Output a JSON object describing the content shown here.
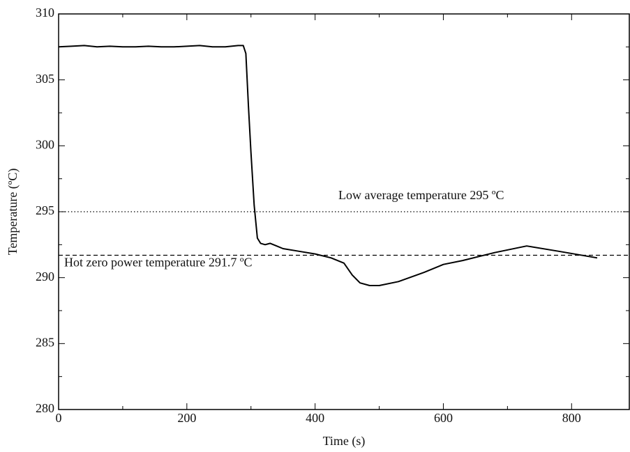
{
  "chart_data": {
    "type": "line",
    "xlabel": "Time (s)",
    "ylabel": "Temperature (ºC)",
    "xlim": [
      0,
      890
    ],
    "ylim": [
      280,
      310
    ],
    "xticks": [
      0,
      200,
      400,
      600,
      800
    ],
    "yticks": [
      280,
      285,
      290,
      295,
      300,
      305,
      310
    ],
    "xminor_ticks": [
      100,
      300,
      500,
      700
    ],
    "yminor_ticks": [
      282.5,
      287.5,
      292.5,
      297.5,
      302.5,
      307.5
    ],
    "series": [
      {
        "color": "#000000",
        "x": [
          0,
          20,
          40,
          60,
          80,
          100,
          120,
          140,
          160,
          180,
          200,
          220,
          240,
          260,
          280,
          288,
          292,
          296,
          300,
          305,
          310,
          315,
          322,
          330,
          340,
          350,
          375,
          400,
          425,
          445,
          458,
          470,
          485,
          500,
          530,
          570,
          600,
          630,
          680,
          730,
          780,
          840
        ],
        "values": [
          307.5,
          307.55,
          307.6,
          307.5,
          307.55,
          307.5,
          307.5,
          307.55,
          307.5,
          307.5,
          307.55,
          307.6,
          307.5,
          307.5,
          307.6,
          307.6,
          307.0,
          303,
          299.5,
          295.5,
          293,
          292.6,
          292.5,
          292.6,
          292.4,
          292.2,
          292.0,
          291.8,
          291.5,
          291.1,
          290.2,
          289.6,
          289.4,
          289.4,
          289.7,
          290.4,
          291.0,
          291.3,
          291.9,
          292.4,
          292.0,
          291.5
        ]
      }
    ],
    "reference_lines": [
      {
        "value": 295,
        "label": "Low average temperature 295 ºC",
        "style": "dotted"
      },
      {
        "value": 291.7,
        "label": "Hot zero power temperature 291.7 ºC",
        "style": "dashed"
      }
    ]
  }
}
